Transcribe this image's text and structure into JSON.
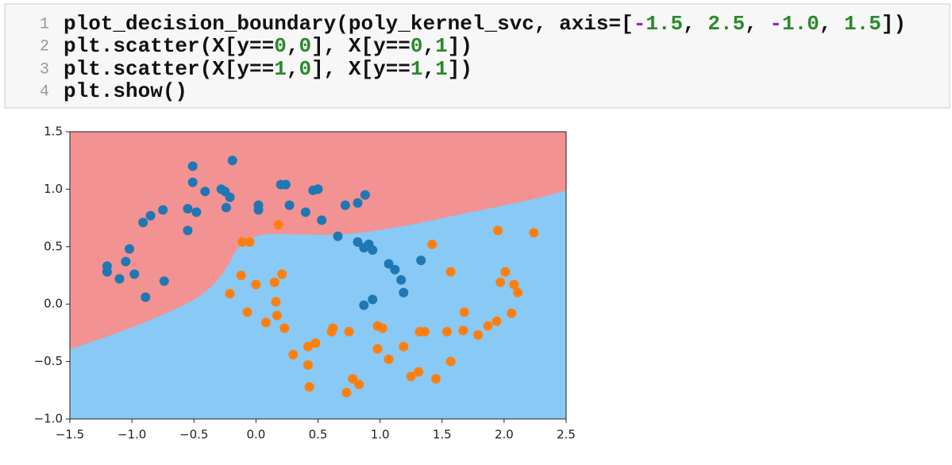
{
  "cell": {
    "line_numbers": [
      "1",
      "2",
      "3",
      "4"
    ],
    "lines": [
      "plot_decision_boundary(poly_kernel_svc, axis=[-1.5, 2.5, -1.0, 1.5])",
      "plt.scatter(X[y==0,0], X[y==0,1])",
      "plt.scatter(X[y==1,0], X[y==1,1])",
      "plt.show()"
    ]
  },
  "chart_data": {
    "type": "scatter",
    "xlim": [
      -1.5,
      2.5
    ],
    "ylim": [
      -1.0,
      1.5
    ],
    "xticks": [
      {
        "value": -1.5,
        "label": "−1.5"
      },
      {
        "value": -1.0,
        "label": "−1.0"
      },
      {
        "value": -0.5,
        "label": "−0.5"
      },
      {
        "value": 0,
        "label": "0.0"
      },
      0.5,
      {
        "value": 1,
        "label": "1.0"
      },
      1.5,
      {
        "value": 2,
        "label": "2.0"
      },
      2.5
    ],
    "yticks": [
      1.5,
      {
        "value": 1,
        "label": "1.0"
      },
      0.5,
      {
        "value": 0,
        "label": "0.0"
      },
      {
        "value": -0.5,
        "label": "−0.5"
      },
      {
        "value": -1,
        "label": "−1.0"
      }
    ],
    "region_colors": [
      "#f39292",
      "#88c9f5"
    ],
    "series": [
      {
        "color": "#1f77b4",
        "x": [
          -1.2,
          -1.2,
          -1.1,
          -1.05,
          -1.02,
          -0.98,
          -0.91,
          -0.89,
          -0.85,
          -0.75,
          -0.74,
          -0.55,
          -0.55,
          -0.51,
          -0.51,
          -0.48,
          -0.41,
          -0.28,
          -0.25,
          -0.24,
          -0.21,
          -0.19,
          0.02,
          0.02,
          0.2,
          0.24,
          0.27,
          0.4,
          0.46,
          0.5,
          0.53,
          0.66,
          0.72,
          0.82,
          0.88,
          0.82,
          0.87,
          0.91,
          0.94,
          0.87,
          0.94,
          1.07,
          1.12,
          1.17,
          1.19,
          1.33
        ],
        "values": [
          0.33,
          0.28,
          0.22,
          0.37,
          0.48,
          0.26,
          0.71,
          0.06,
          0.77,
          0.82,
          0.2,
          0.64,
          0.83,
          1.2,
          1.06,
          0.8,
          0.98,
          1.0,
          0.98,
          0.84,
          0.93,
          1.25,
          0.86,
          0.82,
          1.04,
          1.04,
          0.86,
          0.8,
          0.99,
          1.0,
          0.73,
          0.59,
          0.86,
          0.88,
          0.95,
          0.54,
          0.49,
          0.52,
          0.47,
          -0.01,
          0.04,
          0.35,
          0.3,
          0.21,
          0.1,
          0.38
        ]
      },
      {
        "color": "#ff7f0e",
        "x": [
          -0.11,
          -0.05,
          0.18,
          -0.12,
          -0.21,
          0.0,
          0.15,
          0.21,
          -0.07,
          0.16,
          0.17,
          0.08,
          0.23,
          0.3,
          0.42,
          0.48,
          0.42,
          0.43,
          0.61,
          0.62,
          0.75,
          0.73,
          0.78,
          0.83,
          0.98,
          1.02,
          0.98,
          1.07,
          1.19,
          1.25,
          1.31,
          1.32,
          1.36,
          1.45,
          1.54,
          1.57,
          1.57,
          1.42,
          1.67,
          1.68,
          1.79,
          1.87,
          1.94,
          1.95,
          1.97,
          2.01,
          2.06,
          2.08,
          2.11,
          2.24
        ],
        "values": [
          0.54,
          0.54,
          0.69,
          0.25,
          0.09,
          0.17,
          0.19,
          0.26,
          -0.07,
          0.02,
          -0.1,
          -0.16,
          -0.21,
          -0.44,
          -0.37,
          -0.34,
          -0.53,
          -0.72,
          -0.24,
          -0.21,
          -0.24,
          -0.77,
          -0.65,
          -0.7,
          -0.19,
          -0.21,
          -0.39,
          -0.48,
          -0.37,
          -0.63,
          -0.59,
          -0.24,
          -0.24,
          -0.65,
          -0.24,
          -0.5,
          0.28,
          0.52,
          -0.23,
          -0.07,
          -0.27,
          -0.19,
          -0.15,
          0.64,
          0.19,
          0.28,
          -0.08,
          0.17,
          0.1,
          0.62
        ]
      }
    ]
  }
}
